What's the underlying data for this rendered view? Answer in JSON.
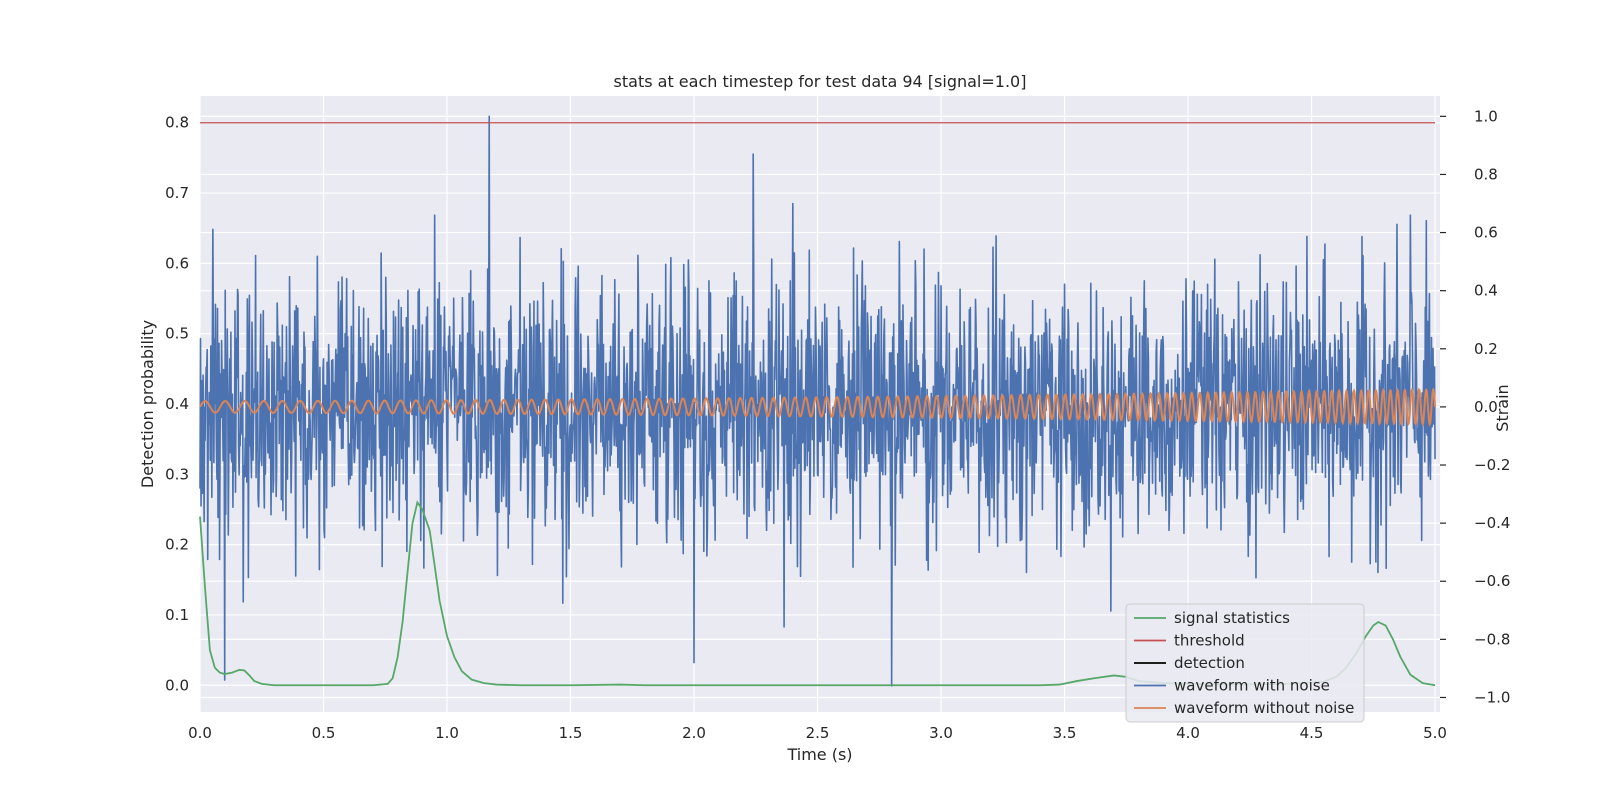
{
  "chart_data": {
    "type": "line",
    "title": "stats at each timestep for test data 94 [signal=1.0]",
    "xlabel": "Time (s)",
    "ylabel_left": "Detection probability",
    "ylabel_right": "Strain",
    "xlim": [
      0.0,
      5.02
    ],
    "ylim_left": [
      -0.038,
      0.838
    ],
    "ylim_right": [
      -1.05,
      1.07
    ],
    "x_ticks": [
      "0.0",
      "0.5",
      "1.0",
      "1.5",
      "2.0",
      "2.5",
      "3.0",
      "3.5",
      "4.0",
      "4.5",
      "5.0"
    ],
    "y_ticks_left": [
      "0.0",
      "0.1",
      "0.2",
      "0.3",
      "0.4",
      "0.5",
      "0.6",
      "0.7",
      "0.8"
    ],
    "y_ticks_right": [
      "−1.0",
      "−0.8",
      "−0.6",
      "−0.4",
      "−0.2",
      "0.0",
      "0.2",
      "0.4",
      "0.6",
      "0.8",
      "1.0"
    ],
    "grid": true,
    "legend_position": "lower-right",
    "colors": {
      "signal_statistics": "#55a868",
      "threshold": "#c44e52",
      "detection": "#000000",
      "waveform_with_noise": "#4c72b0",
      "waveform_without_noise": "#dd8452",
      "plot_background": "#eaeaf2",
      "grid": "#ffffff"
    },
    "series": [
      {
        "name": "signal statistics",
        "axis": "left",
        "x": [
          0.0,
          0.02,
          0.04,
          0.06,
          0.08,
          0.1,
          0.13,
          0.16,
          0.18,
          0.2,
          0.22,
          0.25,
          0.3,
          0.4,
          0.5,
          0.6,
          0.7,
          0.76,
          0.78,
          0.8,
          0.82,
          0.84,
          0.86,
          0.88,
          0.9,
          0.93,
          0.95,
          0.97,
          1.0,
          1.03,
          1.06,
          1.1,
          1.15,
          1.2,
          1.3,
          1.5,
          1.7,
          1.8,
          2.0,
          2.5,
          3.0,
          3.4,
          3.48,
          3.55,
          3.62,
          3.7,
          3.75,
          3.8,
          3.9,
          4.0,
          4.2,
          4.4,
          4.55,
          4.6,
          4.64,
          4.68,
          4.72,
          4.75,
          4.77,
          4.8,
          4.83,
          4.86,
          4.9,
          4.95,
          5.0
        ],
        "y": [
          0.24,
          0.14,
          0.05,
          0.025,
          0.018,
          0.016,
          0.018,
          0.022,
          0.021,
          0.014,
          0.006,
          0.002,
          0.0,
          0.0,
          0.0,
          0.0,
          0.0,
          0.002,
          0.01,
          0.04,
          0.09,
          0.16,
          0.23,
          0.26,
          0.25,
          0.22,
          0.17,
          0.12,
          0.07,
          0.04,
          0.02,
          0.008,
          0.003,
          0.001,
          0.0,
          0.0,
          0.001,
          0.0,
          0.0,
          0.0,
          0.0,
          0.0,
          0.001,
          0.006,
          0.01,
          0.014,
          0.012,
          0.006,
          0.003,
          0.002,
          0.001,
          0.002,
          0.005,
          0.012,
          0.025,
          0.045,
          0.07,
          0.085,
          0.09,
          0.085,
          0.065,
          0.04,
          0.015,
          0.003,
          0.0
        ]
      },
      {
        "name": "threshold",
        "axis": "left",
        "x": [
          0.0,
          5.0
        ],
        "y": [
          0.8,
          0.8
        ]
      },
      {
        "name": "detection",
        "axis": "left",
        "x": [],
        "y": []
      },
      {
        "name": "waveform with noise",
        "axis": "right",
        "type": "noise",
        "x_range": [
          0.0,
          5.0
        ],
        "mean": 0.0,
        "std": 0.24,
        "max": 1.0,
        "min": -0.96,
        "peaks": [
          {
            "x": 1.17,
            "y": 1.0
          },
          {
            "x": 2.24,
            "y": 0.87
          },
          {
            "x": 2.8,
            "y": -0.96
          },
          {
            "x": 0.1,
            "y": -0.94
          },
          {
            "x": 2.0,
            "y": -0.88
          },
          {
            "x": 0.95,
            "y": 0.66
          },
          {
            "x": 2.4,
            "y": 0.7
          },
          {
            "x": 4.9,
            "y": 0.66
          }
        ]
      },
      {
        "name": "waveform without noise",
        "axis": "right",
        "type": "chirp",
        "x_range": [
          0.0,
          5.0
        ],
        "amplitude_start": 0.02,
        "amplitude_end": 0.06,
        "freq_start_hz": 12,
        "freq_end_hz": 35
      }
    ],
    "legend": [
      "signal statistics",
      "threshold",
      "detection",
      "waveform with noise",
      "waveform without noise"
    ]
  }
}
